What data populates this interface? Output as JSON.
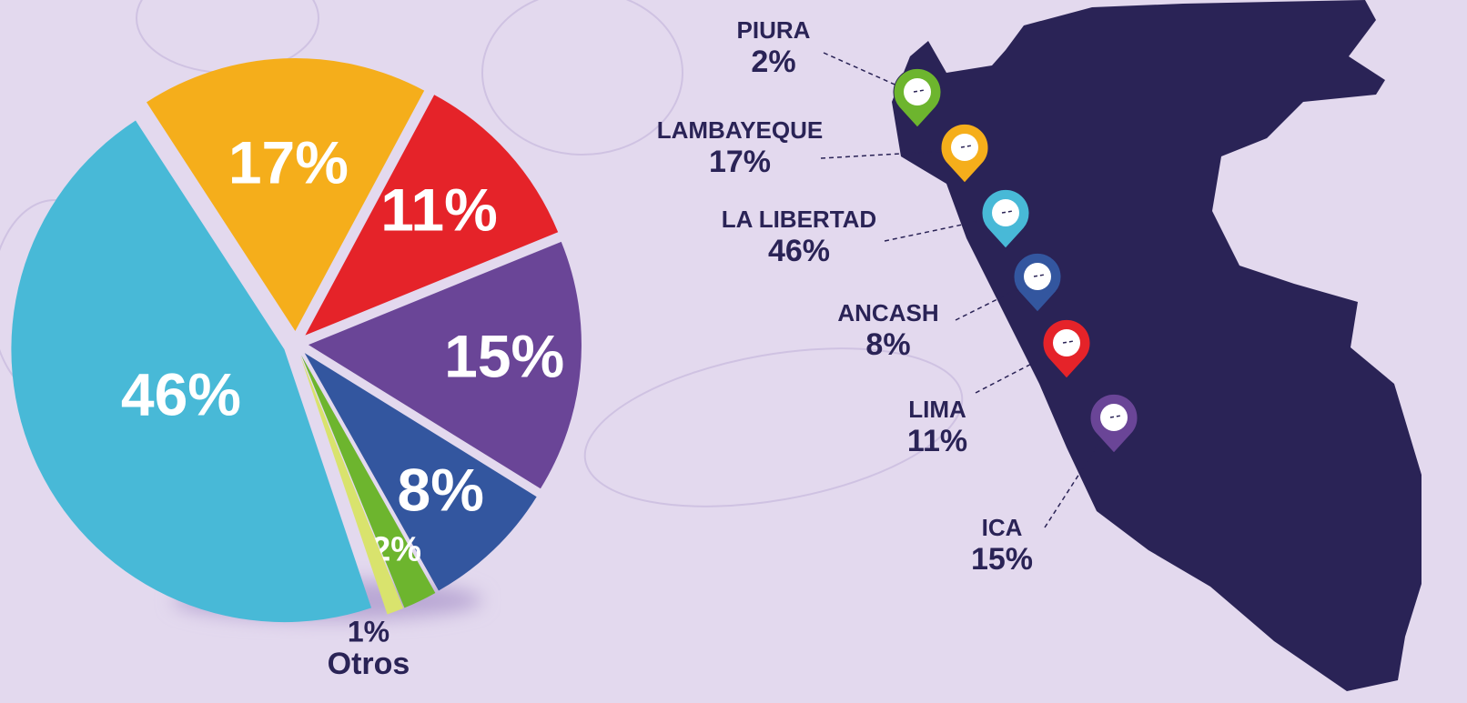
{
  "chart_data": {
    "type": "pie",
    "categories": [
      "LAMBAYEQUE",
      "LIMA",
      "ICA",
      "ANCASH",
      "PIURA",
      "Otros",
      "LA LIBERTAD"
    ],
    "values": [
      17,
      11,
      15,
      8,
      2,
      1,
      46
    ],
    "value_labels": [
      "17%",
      "11%",
      "15%",
      "8%",
      "2%",
      "1%",
      "46%"
    ],
    "colors": [
      "#f5ae1b",
      "#e52329",
      "#6a4597",
      "#33569f",
      "#6db52e",
      "#d9e36d",
      "#48b9d7"
    ]
  }
}
